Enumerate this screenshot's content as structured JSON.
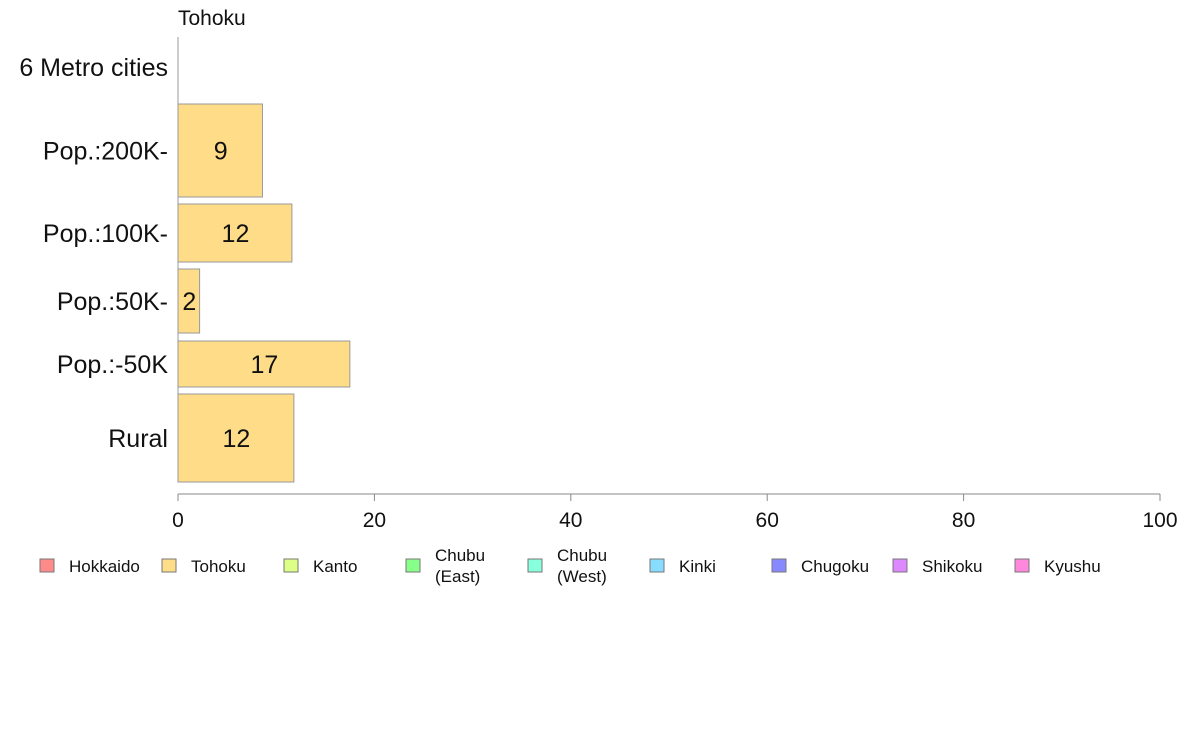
{
  "chart_data": {
    "type": "bar",
    "orientation": "horizontal",
    "title": "Tohoku",
    "categories": [
      "6 Metro cities",
      "Pop.:200K-",
      "Pop.:100K-",
      "Pop.:50K-",
      "Pop.:-50K",
      "Rural"
    ],
    "values": [
      0,
      8.6,
      11.6,
      2.2,
      17.5,
      11.8
    ],
    "value_labels": [
      "",
      "9",
      "12",
      "2",
      "17",
      "12"
    ],
    "xlim": [
      0,
      100
    ],
    "xticks": [
      "0",
      "20",
      "40",
      "60",
      "80",
      "100"
    ],
    "xlabel": "",
    "ylabel": "",
    "grid": false,
    "bar_color": "#FFDD88",
    "bar_border_color": "#999999",
    "legend_position": "bottom",
    "legend": [
      {
        "label": "Hokkaido",
        "color": "#FF8A8A"
      },
      {
        "label": "Tohoku",
        "color": "#FFDD88"
      },
      {
        "label": "Kanto",
        "color": "#DDFF88"
      },
      {
        "label": "Chubu\n(East)",
        "color": "#88FF88"
      },
      {
        "label": "Chubu\n(West)",
        "color": "#88FFDD"
      },
      {
        "label": "Kinki",
        "color": "#88DDFF"
      },
      {
        "label": "Chugoku",
        "color": "#8888FF"
      },
      {
        "label": "Shikoku",
        "color": "#DD88FF"
      },
      {
        "label": "Kyushu",
        "color": "#FF88DD"
      }
    ]
  }
}
